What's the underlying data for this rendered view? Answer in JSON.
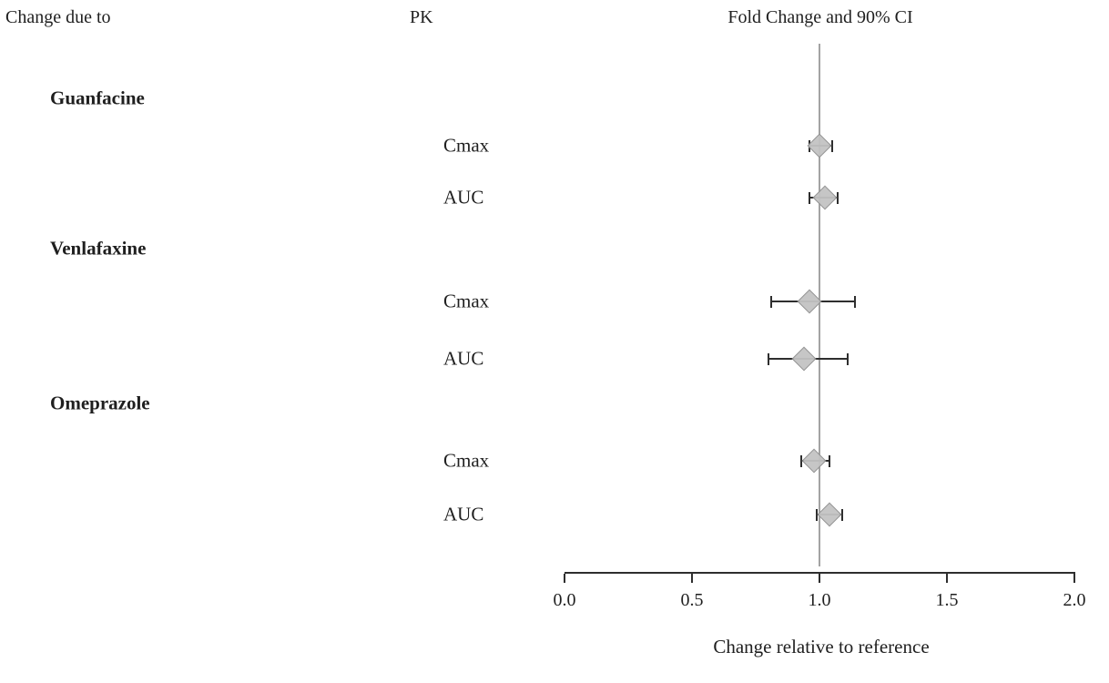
{
  "chart_data": {
    "type": "forest",
    "columns": [
      "Change due to",
      "PK",
      "Fold Change and 90% CI"
    ],
    "x_axis": {
      "label": "Change relative to reference",
      "range": [
        0.0,
        2.0
      ],
      "ticks": [
        0.0,
        0.5,
        1.0,
        1.5,
        2.0
      ]
    },
    "reference_line": 1.0,
    "groups": [
      {
        "drug": "Guanfacine",
        "measures": [
          {
            "name": "Cmax",
            "estimate": 1.0,
            "ci_low": 0.96,
            "ci_high": 1.05
          },
          {
            "name": "AUC",
            "estimate": 1.02,
            "ci_low": 0.96,
            "ci_high": 1.07
          }
        ]
      },
      {
        "drug": "Venlafaxine",
        "measures": [
          {
            "name": "Cmax",
            "estimate": 0.96,
            "ci_low": 0.81,
            "ci_high": 1.14
          },
          {
            "name": "AUC",
            "estimate": 0.94,
            "ci_low": 0.8,
            "ci_high": 1.11
          }
        ]
      },
      {
        "drug": "Omeprazole",
        "measures": [
          {
            "name": "Cmax",
            "estimate": 0.98,
            "ci_low": 0.93,
            "ci_high": 1.04
          },
          {
            "name": "AUC",
            "estimate": 1.04,
            "ci_low": 0.99,
            "ci_high": 1.09
          }
        ]
      }
    ]
  }
}
